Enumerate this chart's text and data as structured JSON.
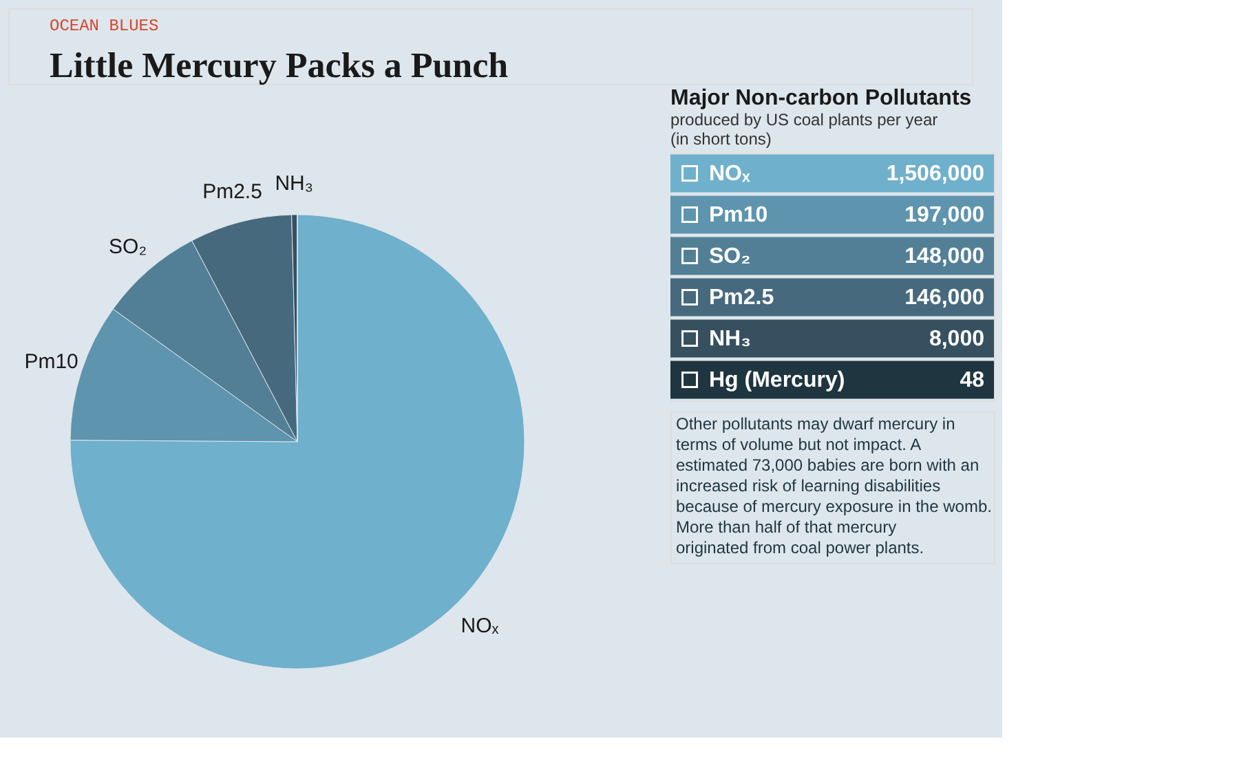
{
  "chart_data": {
    "type": "pie",
    "subtitle": "OCEAN BLUES",
    "title": "Little Mercury Packs a Punch",
    "legend_title": "Major Non-carbon Pollutants",
    "categories": [
      "NOₓ",
      "Pm10",
      "SO₂",
      "Pm2.5",
      "NH₃",
      "Hg (Mercury)"
    ],
    "values": [
      1506000,
      197000,
      148000,
      146000,
      8000,
      48
    ],
    "value_labels": [
      "1,506,000",
      "197,000",
      "148,000",
      "146,000",
      "8,000",
      "48"
    ],
    "colors": [
      "#6fb0cc",
      "#5e94ad",
      "#527f96",
      "#46697d",
      "#36505f",
      "#1f3540"
    ],
    "legend": "right",
    "annotations": [
      "produced by US coal plants per year (in short tons)",
      "Other pollutants may dwarf mercury in terms of volume but not impact. A estimated 73,000 babies are born with an increased risk of learning disabilities because of mercury exposure in the womb. More than half of that mercury originated from coal power plants."
    ]
  }
}
